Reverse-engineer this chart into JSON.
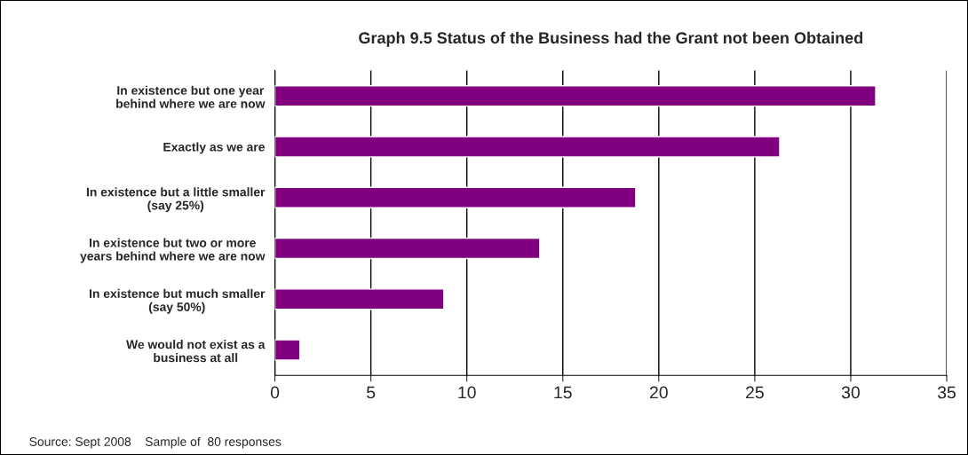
{
  "chart_data": {
    "type": "bar",
    "orientation": "horizontal",
    "title": "Graph 9.5 Status of the Business had the Grant not been Obtained",
    "categories": [
      "In existence but one year\nbehind where we are now",
      "Exactly as we are",
      "In existence but a little smaller\n(say 25%)",
      "In existence but two or more\nyears behind where we are now",
      "In existence but much smaller\n(say 50%)",
      "We would not exist as a\nbusiness at all"
    ],
    "values": [
      31.3,
      26.3,
      18.8,
      13.8,
      8.8,
      1.3
    ],
    "color": "#800080",
    "xlim": [
      0,
      35
    ],
    "xticks": [
      0,
      5,
      10,
      15,
      20,
      25,
      30,
      35
    ],
    "grid": "x",
    "annotations": [
      "Source: Sept 2008    Sample of  80 responses"
    ]
  }
}
